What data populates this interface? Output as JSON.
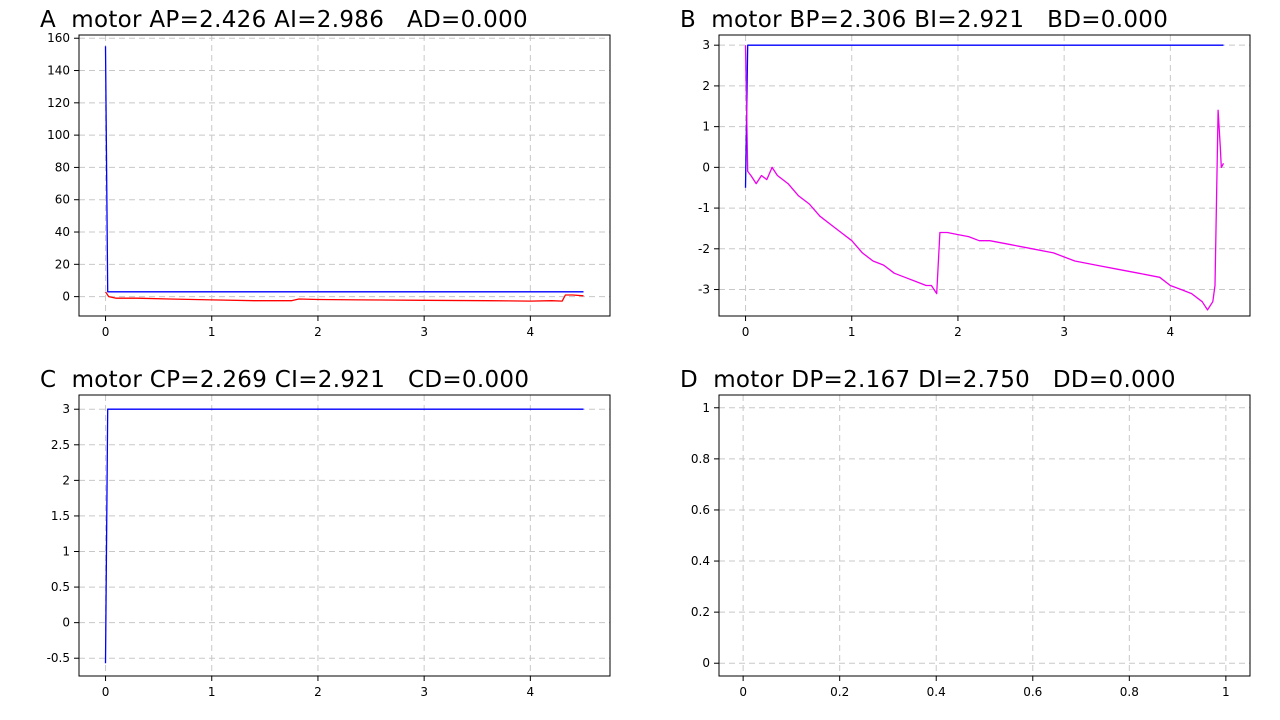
{
  "panels": {
    "A": {
      "title": "A  motor AP=2.426 AI=2.986   AD=0.000"
    },
    "B": {
      "title": "B  motor BP=2.306 BI=2.921   BD=0.000"
    },
    "C": {
      "title": "C  motor CP=2.269 CI=2.921   CD=0.000"
    },
    "D": {
      "title": "D  motor DP=2.167 DI=2.750   DD=0.000"
    }
  },
  "chart_data": [
    {
      "id": "A",
      "type": "line",
      "title": "A  motor AP=2.426 AI=2.986   AD=0.000",
      "xlim": [
        -0.25,
        4.75
      ],
      "ylim": [
        -12,
        162
      ],
      "xticks": [
        0,
        1,
        2,
        3,
        4
      ],
      "xtick_labels": [
        "0",
        "1",
        "2",
        "3",
        "4"
      ],
      "yticks": [
        0,
        20,
        40,
        60,
        80,
        100,
        120,
        140,
        160
      ],
      "ytick_labels": [
        "0",
        "20",
        "40",
        "60",
        "80",
        "100",
        "120",
        "140",
        "160"
      ],
      "grid": true,
      "series": [
        {
          "color": "#0000ff",
          "x": [
            0,
            0.02,
            0.03,
            4.5
          ],
          "y": [
            155,
            3,
            3,
            3
          ]
        },
        {
          "color": "#ff0000",
          "x": [
            0,
            0.03,
            0.1,
            0.3,
            0.6,
            1.0,
            1.4,
            1.75,
            1.82,
            2.0,
            2.4,
            3.0,
            3.6,
            4.0,
            4.2,
            4.3,
            4.33,
            4.4,
            4.5
          ],
          "y": [
            3,
            0,
            -1,
            -1,
            -1.5,
            -2,
            -2.5,
            -2.5,
            -1.5,
            -1.8,
            -2,
            -2.3,
            -2.5,
            -2.8,
            -2.5,
            -2.8,
            1,
            1,
            0.5
          ]
        }
      ]
    },
    {
      "id": "B",
      "type": "line",
      "title": "B  motor BP=2.306 BI=2.921   BD=0.000",
      "xlim": [
        -0.25,
        4.75
      ],
      "ylim": [
        -3.65,
        3.25
      ],
      "xticks": [
        0,
        1,
        2,
        3,
        4
      ],
      "xtick_labels": [
        "0",
        "1",
        "2",
        "3",
        "4"
      ],
      "yticks": [
        -3,
        -2,
        -1,
        0,
        1,
        2,
        3
      ],
      "ytick_labels": [
        "-3",
        "-2",
        "-1",
        "0",
        "1",
        "2",
        "3"
      ],
      "grid": true,
      "series": [
        {
          "color": "#0000ff",
          "x": [
            0,
            0.02,
            0.03,
            4.5
          ],
          "y": [
            -0.5,
            3,
            3,
            3
          ]
        },
        {
          "color": "#ee00ee",
          "x": [
            0,
            0.02,
            0.05,
            0.1,
            0.15,
            0.2,
            0.25,
            0.3,
            0.4,
            0.5,
            0.6,
            0.7,
            0.8,
            0.9,
            1.0,
            1.1,
            1.2,
            1.3,
            1.4,
            1.5,
            1.6,
            1.7,
            1.75,
            1.8,
            1.83,
            1.9,
            2.0,
            2.1,
            2.2,
            2.3,
            2.5,
            2.7,
            2.9,
            3.1,
            3.3,
            3.5,
            3.7,
            3.9,
            4.0,
            4.1,
            4.2,
            4.3,
            4.35,
            4.4,
            4.42,
            4.45,
            4.47,
            4.48,
            4.5
          ],
          "y": [
            3,
            -0.1,
            -0.2,
            -0.4,
            -0.2,
            -0.3,
            0,
            -0.2,
            -0.4,
            -0.7,
            -0.9,
            -1.2,
            -1.4,
            -1.6,
            -1.8,
            -2.1,
            -2.3,
            -2.4,
            -2.6,
            -2.7,
            -2.8,
            -2.9,
            -2.9,
            -3.1,
            -1.6,
            -1.6,
            -1.65,
            -1.7,
            -1.8,
            -1.8,
            -1.9,
            -2.0,
            -2.1,
            -2.3,
            -2.4,
            -2.5,
            -2.6,
            -2.7,
            -2.9,
            -3.0,
            -3.1,
            -3.3,
            -3.5,
            -3.3,
            -2.9,
            1.4,
            0.5,
            0.0,
            0.1
          ]
        }
      ]
    },
    {
      "id": "C",
      "type": "line",
      "title": "C  motor CP=2.269 CI=2.921   CD=0.000",
      "xlim": [
        -0.25,
        4.75
      ],
      "ylim": [
        -0.75,
        3.2
      ],
      "xticks": [
        0,
        1,
        2,
        3,
        4
      ],
      "xtick_labels": [
        "0",
        "1",
        "2",
        "3",
        "4"
      ],
      "yticks": [
        -0.5,
        0,
        0.5,
        1,
        1.5,
        2,
        2.5,
        3
      ],
      "ytick_labels": [
        "-0.5",
        "0",
        "0.5",
        "1",
        "1.5",
        "2",
        "2.5",
        "3"
      ],
      "grid": true,
      "series": [
        {
          "color": "#0000ff",
          "x": [
            0,
            0.02,
            0.03,
            4.5
          ],
          "y": [
            -0.57,
            3,
            3,
            3
          ]
        }
      ]
    },
    {
      "id": "D",
      "type": "line",
      "title": "D  motor DP=2.167 DI=2.750   DD=0.000",
      "xlim": [
        -0.05,
        1.05
      ],
      "ylim": [
        -0.05,
        1.05
      ],
      "xticks": [
        0,
        0.2,
        0.4,
        0.6,
        0.8,
        1
      ],
      "xtick_labels": [
        "0",
        "0.2",
        "0.4",
        "0.6",
        "0.8",
        "1"
      ],
      "yticks": [
        0,
        0.2,
        0.4,
        0.6,
        0.8,
        1
      ],
      "ytick_labels": [
        "0",
        "0.2",
        "0.4",
        "0.6",
        "0.8",
        "1"
      ],
      "grid": true,
      "series": []
    }
  ]
}
